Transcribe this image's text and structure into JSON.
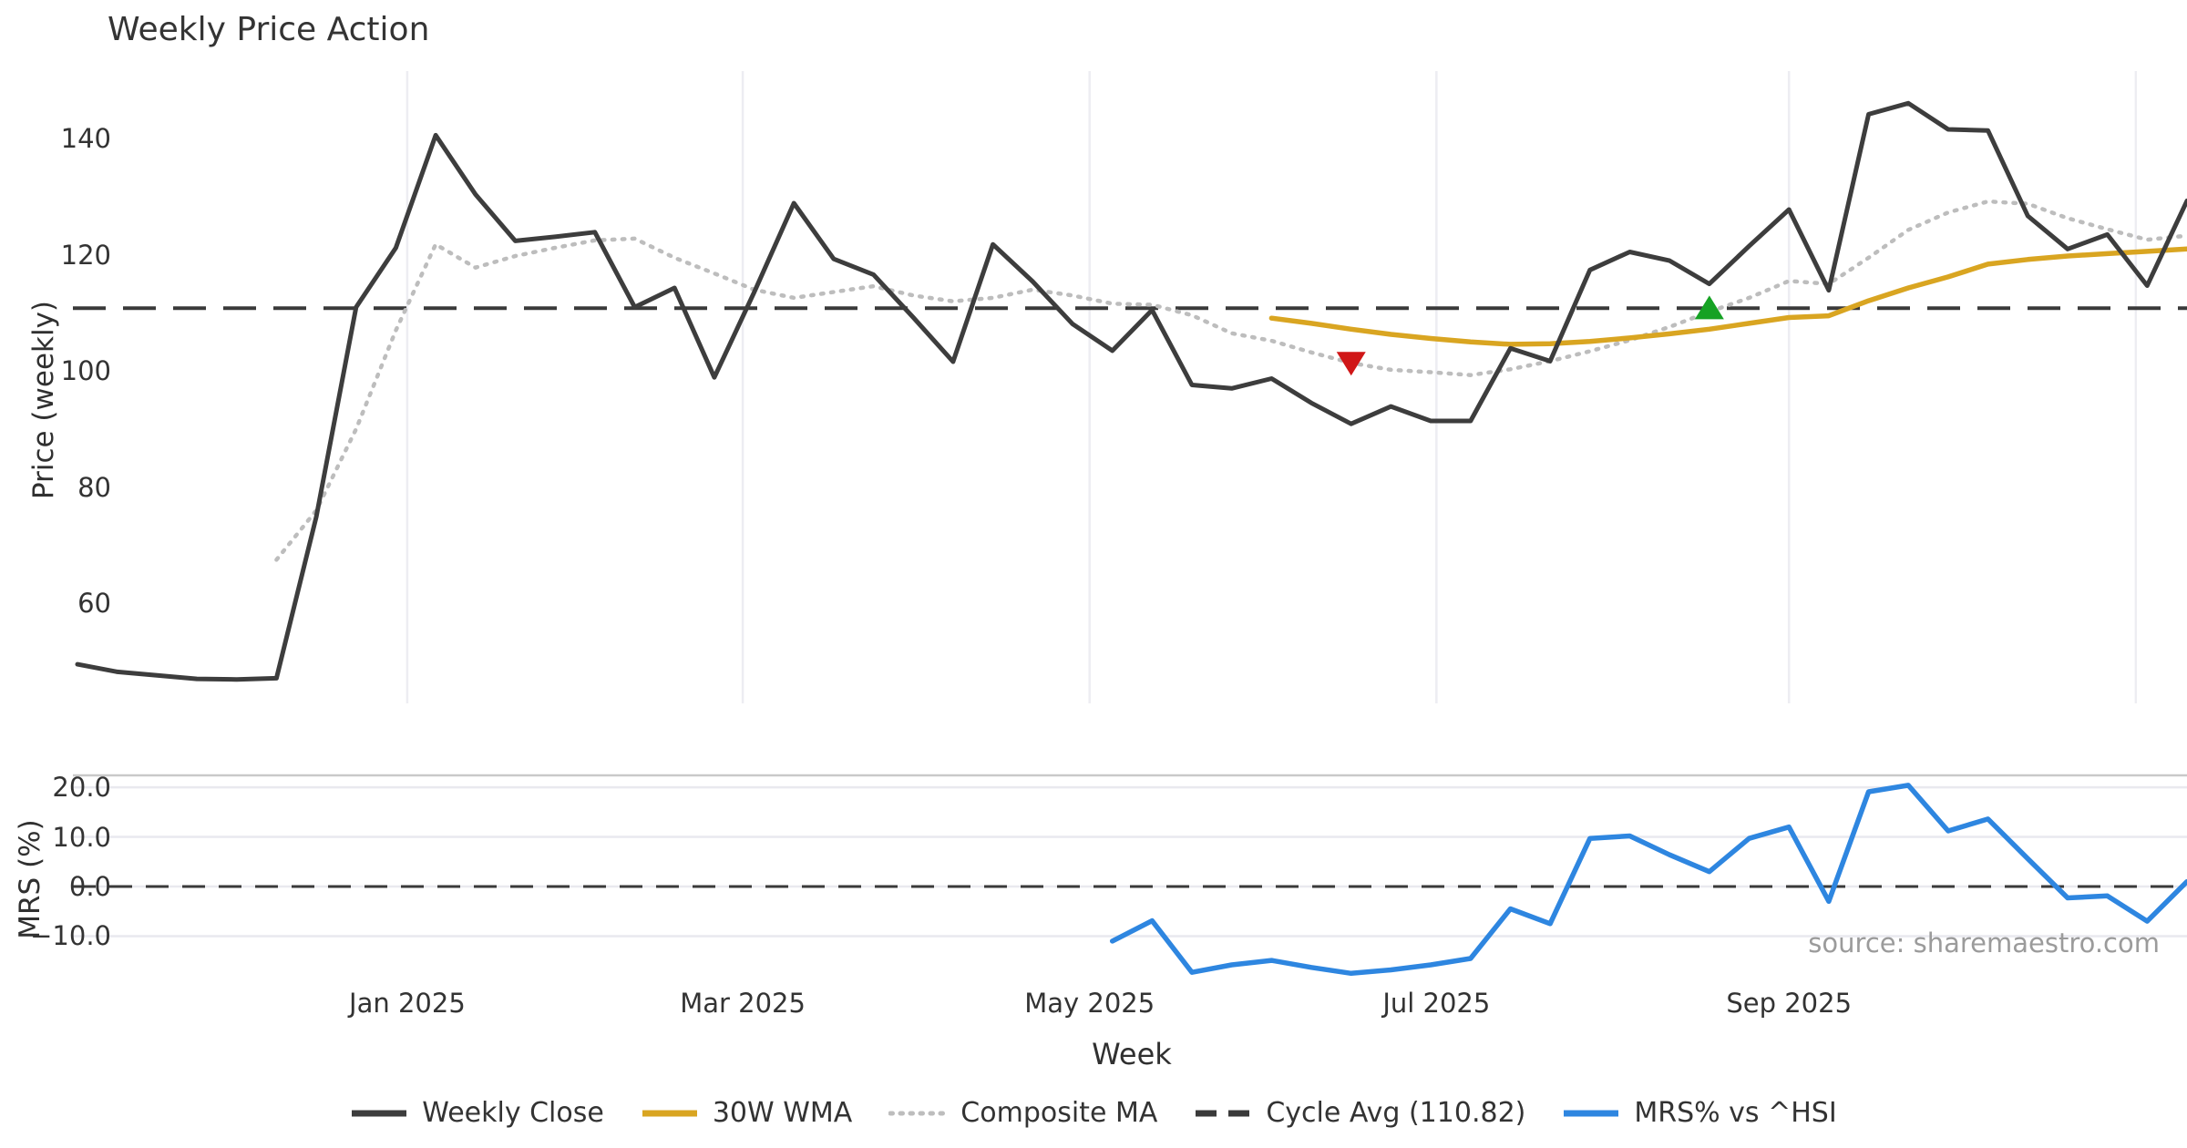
{
  "title": "Weekly Price Action",
  "source_note": "source: sharemaestro.com",
  "price_axis": {
    "label": "Price (weekly)",
    "tick_labels": [
      "140",
      "120",
      "100",
      "80",
      "60"
    ],
    "tick_values": [
      140,
      120,
      100,
      80,
      60
    ]
  },
  "mrs_axis": {
    "label": "MRS (%)",
    "tick_labels": [
      "20.0",
      "10.0",
      "0.0",
      "−10.0"
    ],
    "tick_values": [
      20,
      10,
      0,
      -10
    ]
  },
  "x_axis": {
    "label": "Week",
    "ticks": [
      {
        "label": "Jan 2025",
        "day": 58
      },
      {
        "label": "Mar 2025",
        "day": 117
      },
      {
        "label": "May 2025",
        "day": 178
      },
      {
        "label": "Jul 2025",
        "day": 239
      },
      {
        "label": "Sep 2025",
        "day": 301
      }
    ],
    "unlabeled_gridline_days": [
      362
    ]
  },
  "legend": [
    {
      "label": "Weekly Close",
      "color": "#3d3d3d",
      "style": "solid"
    },
    {
      "label": "30W WMA",
      "color": "#d9a521",
      "style": "solid"
    },
    {
      "label": "Composite MA",
      "color": "#bdbdbd",
      "style": "dotted"
    },
    {
      "label": "Cycle Avg (110.82)",
      "color": "#3a3a3a",
      "style": "dashed"
    },
    {
      "label": "MRS% vs ^HSI",
      "color": "#2e86e0",
      "style": "solid"
    }
  ],
  "colors": {
    "weekly_close": "#3d3d3d",
    "wma": "#d9a521",
    "composite": "#bdbdbd",
    "cycle_avg": "#3a3a3a",
    "mrs": "#2e86e0",
    "grid_vertical": "#ededf2",
    "grid_horizontal": "#e9e9ef",
    "panel_border": "#c9c9c9",
    "sell_marker": "#d01617",
    "buy_marker": "#16a224"
  },
  "chart_data": [
    {
      "type": "line",
      "panel": "price",
      "title": "Weekly Price Action",
      "xlabel": "Week",
      "ylabel": "Price (weekly)",
      "ylim": [
        43,
        151
      ],
      "grid": "vertical-only",
      "cycle_avg": 110.82,
      "x": [
        "2024-11-04",
        "2024-11-11",
        "2024-11-18",
        "2024-11-25",
        "2024-12-02",
        "2024-12-09",
        "2024-12-16",
        "2024-12-23",
        "2024-12-30",
        "2025-01-06",
        "2025-01-13",
        "2025-01-20",
        "2025-01-27",
        "2025-02-03",
        "2025-02-10",
        "2025-02-17",
        "2025-02-24",
        "2025-03-03",
        "2025-03-10",
        "2025-03-17",
        "2025-03-24",
        "2025-03-31",
        "2025-04-07",
        "2025-04-14",
        "2025-04-21",
        "2025-04-28",
        "2025-05-05",
        "2025-05-12",
        "2025-05-19",
        "2025-05-26",
        "2025-06-02",
        "2025-06-09",
        "2025-06-16",
        "2025-06-23",
        "2025-06-30",
        "2025-07-07",
        "2025-07-14",
        "2025-07-21",
        "2025-07-28",
        "2025-08-04",
        "2025-08-11",
        "2025-08-18",
        "2025-08-25",
        "2025-09-01",
        "2025-09-08",
        "2025-09-15",
        "2025-09-22",
        "2025-09-29",
        "2025-10-06",
        "2025-10-13",
        "2025-10-20",
        "2025-10-27",
        "2025-11-03",
        "2025-11-10"
      ],
      "series": [
        {
          "name": "Weekly Close",
          "values": [
            49.5,
            48.2,
            47.6,
            47.0,
            46.9,
            47.1,
            74.9,
            111.0,
            121.2,
            140.6,
            130.4,
            122.4,
            123.1,
            123.9,
            111.0,
            114.3,
            98.9,
            113.5,
            128.9,
            119.3,
            116.6,
            109.2,
            101.6,
            121.8,
            115.4,
            108.1,
            103.5,
            110.5,
            97.6,
            97.0,
            98.7,
            94.5,
            90.9,
            93.9,
            91.4,
            91.4,
            103.9,
            101.7,
            117.4,
            120.5,
            119.0,
            115.0,
            121.5,
            127.8,
            113.9,
            144.2,
            146.1,
            141.6,
            141.4,
            126.7,
            121.0,
            123.5,
            114.7,
            129.3
          ]
        },
        {
          "name": "30W WMA",
          "values": [
            null,
            null,
            null,
            null,
            null,
            null,
            null,
            null,
            null,
            null,
            null,
            null,
            null,
            null,
            null,
            null,
            null,
            null,
            null,
            null,
            null,
            null,
            null,
            null,
            null,
            null,
            null,
            null,
            null,
            null,
            109.1,
            108.2,
            107.2,
            106.3,
            105.6,
            105.0,
            104.6,
            104.7,
            105.1,
            105.7,
            106.4,
            107.2,
            108.2,
            109.2,
            109.5,
            112.1,
            114.3,
            116.2,
            118.4,
            119.2,
            119.8,
            120.2,
            120.6,
            121.0
          ]
        },
        {
          "name": "Composite MA",
          "values": [
            null,
            null,
            null,
            null,
            null,
            67.5,
            76.0,
            90.0,
            107.0,
            121.8,
            117.8,
            119.8,
            121.2,
            122.5,
            122.8,
            119.5,
            116.8,
            114.0,
            112.6,
            113.6,
            114.6,
            113.0,
            112.0,
            112.6,
            114.0,
            113.0,
            111.6,
            111.4,
            109.6,
            106.5,
            105.2,
            103.2,
            101.4,
            100.2,
            99.8,
            99.3,
            100.3,
            101.7,
            103.4,
            105.3,
            107.6,
            110.2,
            112.6,
            115.5,
            115.0,
            119.5,
            124.3,
            127.3,
            129.2,
            128.8,
            126.3,
            124.4,
            122.6,
            123.3
          ]
        }
      ],
      "markers": [
        {
          "type": "sell",
          "shape": "triangle-down",
          "date": "2025-06-16",
          "value": 101.4
        },
        {
          "type": "buy",
          "shape": "triangle-up",
          "date": "2025-08-18",
          "value": 110.8
        }
      ]
    },
    {
      "type": "line",
      "panel": "mrs",
      "ylabel": "MRS (%)",
      "ylim": [
        -18.7,
        22.5
      ],
      "grid": "horizontal-only",
      "zero_line": 0,
      "x_shared_with_panel": "price",
      "series": [
        {
          "name": "MRS% vs ^HSI",
          "values": [
            null,
            null,
            null,
            null,
            null,
            null,
            null,
            null,
            null,
            null,
            null,
            null,
            null,
            null,
            null,
            null,
            null,
            null,
            null,
            null,
            null,
            null,
            null,
            null,
            null,
            null,
            -11.0,
            -6.9,
            -17.3,
            -15.8,
            -14.9,
            -16.3,
            -17.5,
            -16.8,
            -15.8,
            -14.5,
            -4.5,
            -7.5,
            9.7,
            10.2,
            6.4,
            3.0,
            9.7,
            12.0,
            -3.0,
            19.1,
            20.4,
            11.2,
            13.6,
            5.6,
            -2.3,
            -1.9,
            -7.0,
            1.0
          ]
        }
      ]
    }
  ]
}
